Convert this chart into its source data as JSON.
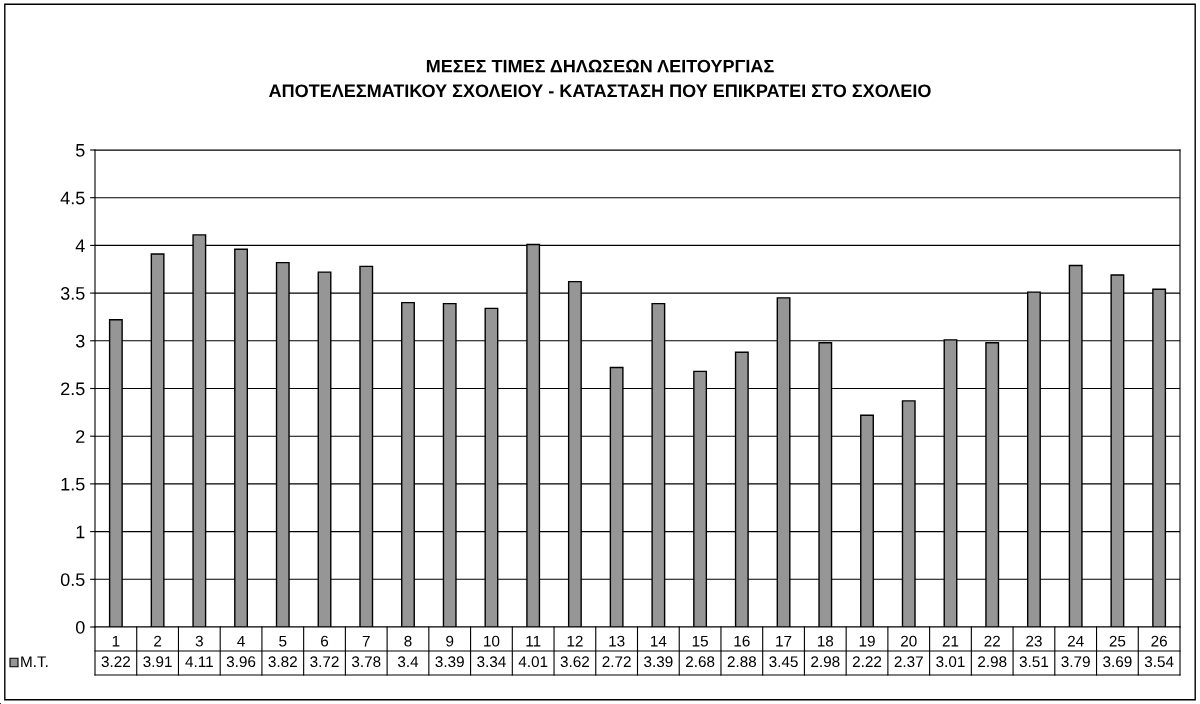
{
  "chart_data": {
    "type": "bar",
    "title": "ΜΕΣΕΣ ΤΙΜΕΣ ΔΗΛΩΣΕΩΝ ΛΕΙΤΟΥΡΓΙΑΣ\nΑΠΟΤΕΛΕΣΜΑΤΙΚΟΥ ΣΧΟΛΕΙΟΥ - ΚΑΤΑΣΤΑΣΗ ΠΟΥ ΕΠΙΚΡΑΤΕΙ ΣΤΟ ΣΧΟΛΕΙΟ",
    "categories": [
      "1",
      "2",
      "3",
      "4",
      "5",
      "6",
      "7",
      "8",
      "9",
      "10",
      "11",
      "12",
      "13",
      "14",
      "15",
      "16",
      "17",
      "18",
      "19",
      "20",
      "21",
      "22",
      "23",
      "24",
      "25",
      "26"
    ],
    "series": [
      {
        "name": "Μ.Τ.",
        "color": "#969696",
        "values": [
          3.22,
          3.91,
          4.11,
          3.96,
          3.82,
          3.72,
          3.78,
          3.4,
          3.39,
          3.34,
          4.01,
          3.62,
          2.72,
          3.39,
          2.68,
          2.88,
          3.45,
          2.98,
          2.22,
          2.37,
          3.01,
          2.98,
          3.51,
          3.79,
          3.69,
          3.54
        ]
      }
    ],
    "ylim": [
      0,
      5
    ],
    "yticks": [
      0,
      0.5,
      1,
      1.5,
      2,
      2.5,
      3,
      3.5,
      4,
      4.5,
      5
    ],
    "grid": "y",
    "data_labels": true
  }
}
